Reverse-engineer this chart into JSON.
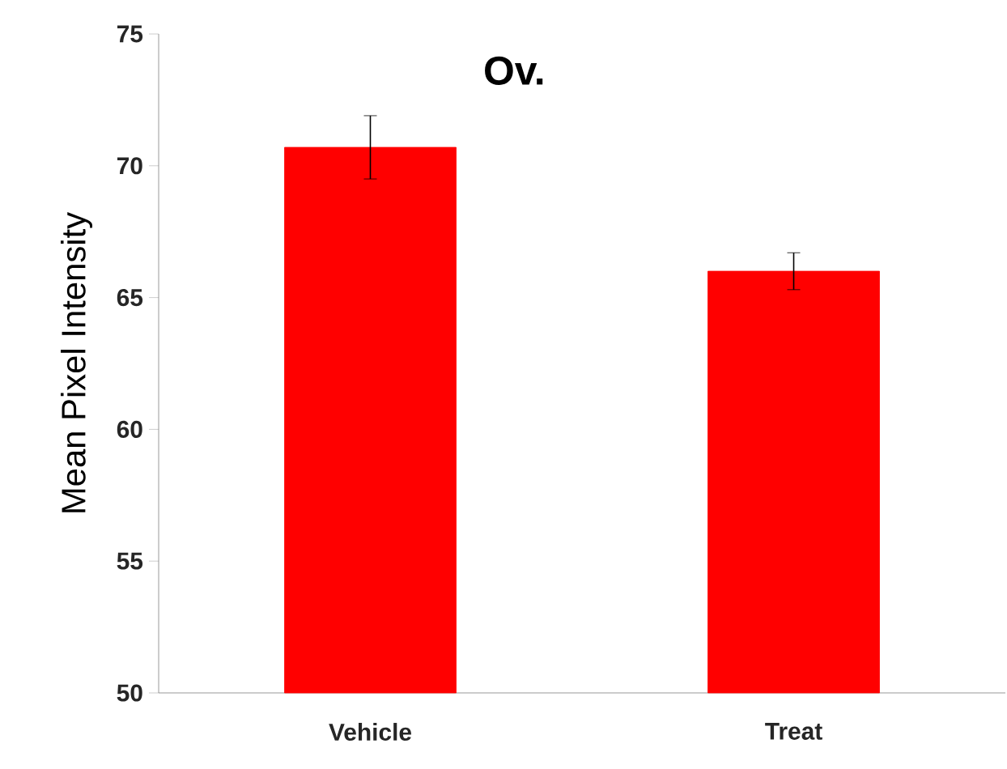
{
  "chart_data": {
    "type": "bar",
    "title": "Ov.",
    "ylabel": "Mean Pixel Intensity",
    "categories": [
      "Vehicle",
      "Treat"
    ],
    "values": [
      70.7,
      66.0
    ],
    "errors": [
      1.2,
      0.7
    ],
    "color": "#ff0000",
    "ylim": [
      50,
      75
    ],
    "yticks": [
      50,
      55,
      60,
      65,
      70,
      75
    ],
    "grid": false
  }
}
